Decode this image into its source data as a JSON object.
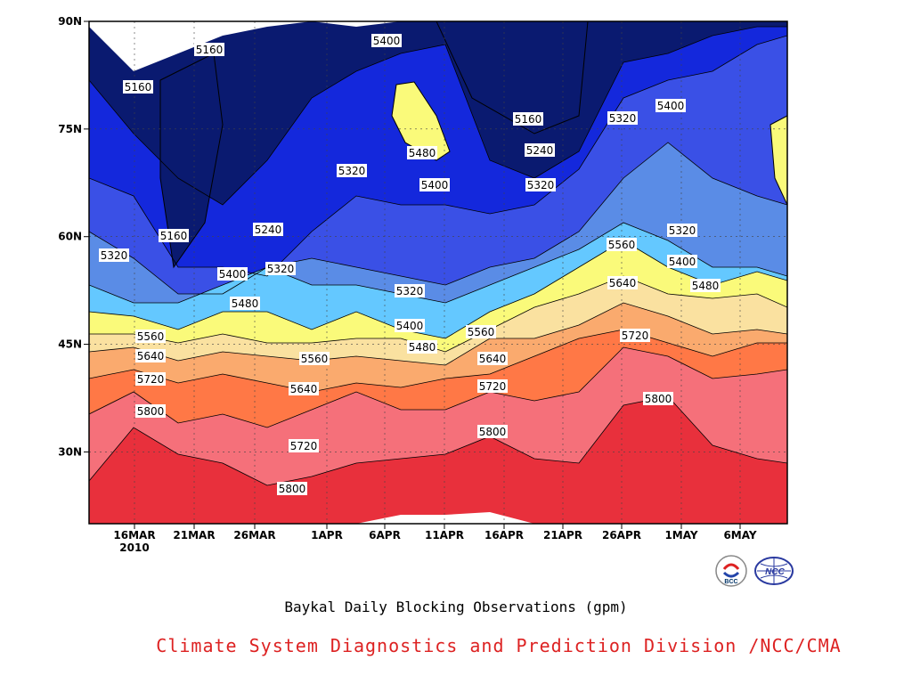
{
  "chart_data": {
    "type": "heatmap",
    "title": "Baykal Daily Blocking Observations (gpm)",
    "credit": "Climate System Diagnostics and Prediction Division /NCC/CMA",
    "credit_color": "#dd2222",
    "x_ticks": [
      "16MAR",
      "21MAR",
      "26MAR",
      "1APR",
      "6APR",
      "11APR",
      "16APR",
      "21APR",
      "26APR",
      "1MAY",
      "6MAY"
    ],
    "x_year": "2010",
    "y_ticks": [
      "30N",
      "45N",
      "60N",
      "75N",
      "90N"
    ],
    "ylim": [
      20,
      90
    ],
    "contour_levels": [
      5160,
      5240,
      5320,
      5400,
      5480,
      5560,
      5640,
      5720,
      5800,
      5880
    ],
    "level_colors": [
      "#0a1a70",
      "#1428dc",
      "#3a50e6",
      "#5a8ce6",
      "#64c8ff",
      "#fafa7a",
      "#fae1a0",
      "#faaa6e",
      "#ff7846",
      "#f5707a",
      "#e8303c"
    ],
    "grid": true,
    "contour_labels": [
      {
        "text": "5160"
      },
      {
        "text": "5160"
      },
      {
        "text": "5160"
      },
      {
        "text": "5160"
      },
      {
        "text": "5240"
      },
      {
        "text": "5240"
      },
      {
        "text": "5320"
      },
      {
        "text": "5320"
      },
      {
        "text": "5320"
      },
      {
        "text": "5320"
      },
      {
        "text": "5320"
      },
      {
        "text": "5320"
      },
      {
        "text": "5320"
      },
      {
        "text": "5400"
      },
      {
        "text": "5400"
      },
      {
        "text": "5400"
      },
      {
        "text": "5400"
      },
      {
        "text": "5400"
      },
      {
        "text": "5400"
      },
      {
        "text": "5480"
      },
      {
        "text": "5480"
      },
      {
        "text": "5480"
      },
      {
        "text": "5480"
      },
      {
        "text": "5560"
      },
      {
        "text": "5560"
      },
      {
        "text": "5560"
      },
      {
        "text": "5560"
      },
      {
        "text": "5640"
      },
      {
        "text": "5640"
      },
      {
        "text": "5640"
      },
      {
        "text": "5640"
      },
      {
        "text": "5720"
      },
      {
        "text": "5720"
      },
      {
        "text": "5720"
      },
      {
        "text": "5720"
      },
      {
        "text": "5800"
      },
      {
        "text": "5800"
      },
      {
        "text": "5800"
      },
      {
        "text": "5800"
      }
    ],
    "logos": {
      "left": "BCC",
      "right": "NCC"
    }
  }
}
